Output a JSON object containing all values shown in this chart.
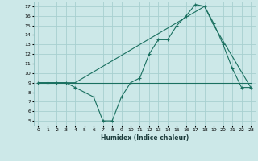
{
  "xlabel": "Humidex (Indice chaleur)",
  "bg_color": "#cce8e8",
  "grid_color": "#a8d0d0",
  "line_color": "#1a7060",
  "xlim": [
    -0.5,
    23.5
  ],
  "ylim": [
    4.5,
    17.5
  ],
  "yticks": [
    5,
    6,
    7,
    8,
    9,
    10,
    11,
    12,
    13,
    14,
    15,
    16,
    17
  ],
  "xticks": [
    0,
    1,
    2,
    3,
    4,
    5,
    6,
    7,
    8,
    9,
    10,
    11,
    12,
    13,
    14,
    15,
    16,
    17,
    18,
    19,
    20,
    21,
    22,
    23
  ],
  "line1_x": [
    0,
    1,
    2,
    3,
    4,
    5,
    6,
    7,
    8,
    9,
    10,
    11,
    12,
    13,
    14,
    15,
    16,
    17,
    18,
    19,
    20,
    21,
    22,
    23
  ],
  "line1_y": [
    9,
    9,
    9,
    9,
    9,
    9,
    9,
    9,
    9,
    9,
    9,
    9,
    9,
    9,
    9,
    9,
    9,
    9,
    9,
    9,
    9,
    9,
    9,
    9
  ],
  "line2_x": [
    0,
    1,
    2,
    3,
    4,
    5,
    6,
    7,
    8,
    9,
    10,
    11,
    12,
    13,
    14,
    15,
    16,
    17,
    18,
    19,
    20,
    21,
    22,
    23
  ],
  "line2_y": [
    9,
    9,
    9,
    9,
    8.5,
    8.0,
    7.5,
    5.0,
    5.0,
    7.5,
    9.0,
    9.5,
    12,
    13.5,
    13.5,
    15,
    16,
    17.2,
    17.0,
    15.2,
    13.0,
    10.5,
    8.5,
    8.5
  ],
  "line3_x": [
    0,
    4,
    18,
    19,
    23
  ],
  "line3_y": [
    9,
    9,
    17,
    15,
    8.5
  ]
}
